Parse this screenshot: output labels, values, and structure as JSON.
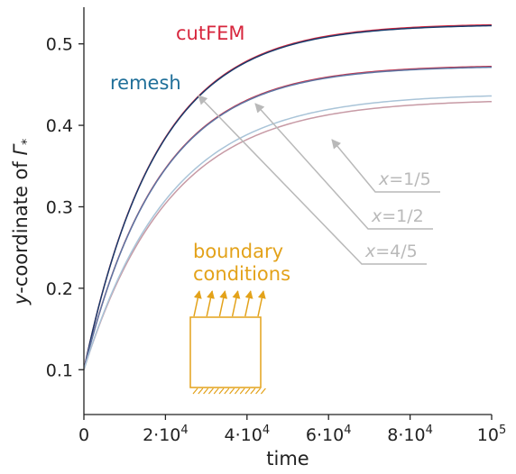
{
  "chart_data": {
    "type": "line",
    "xlabel": "time",
    "ylabel": "y-coordinate of Γ*",
    "ylabel_parts": {
      "prefix": "y",
      "middle": "-coordinate of ",
      "symbol": "Γ",
      "subscript": "*"
    },
    "xlim": [
      0,
      100000
    ],
    "ylim": [
      0.045,
      0.545
    ],
    "xticks": [
      {
        "value": 0,
        "mant": "0",
        "exp": ""
      },
      {
        "value": 20000,
        "mant": "2·10",
        "exp": "4"
      },
      {
        "value": 40000,
        "mant": "4·10",
        "exp": "4"
      },
      {
        "value": 60000,
        "mant": "6·10",
        "exp": "4"
      },
      {
        "value": 80000,
        "mant": "8·10",
        "exp": "4"
      },
      {
        "value": 100000,
        "mant": "10",
        "exp": "5"
      }
    ],
    "yticks": [
      {
        "value": 0.1,
        "label": "0.1"
      },
      {
        "value": 0.2,
        "label": "0.2"
      },
      {
        "value": 0.3,
        "label": "0.3"
      },
      {
        "value": 0.4,
        "label": "0.4"
      },
      {
        "value": 0.5,
        "label": "0.5"
      }
    ],
    "grid": false,
    "series_labels": [
      {
        "text": "cutFEM",
        "color": "#d7263d"
      },
      {
        "text": "remesh",
        "color": "#1f6f99"
      }
    ],
    "series": [
      {
        "method": "cutFEM",
        "position": "x=1/5",
        "color": "#d7263d",
        "y0": 0.1,
        "yinf": 0.525,
        "tau": 18000
      },
      {
        "method": "remesh",
        "position": "x=1/5",
        "color": "#173b6c",
        "y0": 0.1,
        "yinf": 0.524,
        "tau": 18000
      },
      {
        "method": "cutFEM",
        "position": "x=1/2",
        "color": "#c2364f",
        "y0": 0.1,
        "yinf": 0.474,
        "tau": 18500
      },
      {
        "method": "remesh",
        "position": "x=1/2",
        "color": "#5c76a4",
        "y0": 0.1,
        "yinf": 0.473,
        "tau": 18500
      },
      {
        "method": "cutFEM",
        "position": "x=4/5",
        "color": "#c79aa5",
        "y0": 0.1,
        "yinf": 0.432,
        "tau": 21000
      },
      {
        "method": "remesh",
        "position": "x=4/5",
        "color": "#a9c4d8",
        "y0": 0.1,
        "yinf": 0.439,
        "tau": 21000
      }
    ],
    "annotations": [
      {
        "var": "x",
        "value": "=1/5",
        "points_to": "x=1/5"
      },
      {
        "var": "x",
        "value": "=1/2",
        "points_to": "x=1/2"
      },
      {
        "var": "x",
        "value": "=4/5",
        "points_to": "x=4/5"
      }
    ],
    "inset": {
      "label_lines": [
        "boundary",
        "conditions"
      ],
      "color": "#e3a21a",
      "arrow_count": 6
    }
  }
}
